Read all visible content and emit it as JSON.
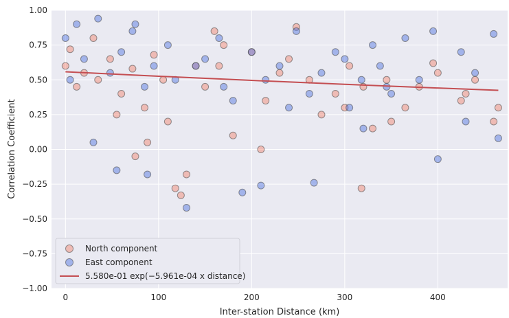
{
  "chart_data": {
    "type": "scatter",
    "xlabel": "Inter-station Distance (km)",
    "ylabel": "Correlation Coefficient",
    "xlim": [
      -15,
      475
    ],
    "ylim": [
      -1.0,
      1.0
    ],
    "x_ticks": [
      0,
      100,
      200,
      300,
      400
    ],
    "y_ticks": [
      -1.0,
      -0.75,
      -0.5,
      -0.25,
      0.0,
      0.25,
      0.5,
      0.75,
      1.0
    ],
    "x_tick_labels": [
      "0",
      "100",
      "200",
      "300",
      "400"
    ],
    "y_tick_labels": [
      "−1.00",
      "−0.75",
      "−0.50",
      "−0.25",
      "0.00",
      "0.25",
      "0.50",
      "0.75",
      "1.00"
    ],
    "grid": true,
    "legend_position": "lower-left",
    "colors": {
      "background": "#eaeaf2",
      "grid": "#ffffff",
      "north": "#f4836b",
      "east": "#4c72e0",
      "fit": "#c44e52"
    },
    "series": [
      {
        "name": "North component",
        "kind": "scatter",
        "points_note": "dense cloud, sample of representative points",
        "x": [
          0,
          5,
          12,
          20,
          35,
          48,
          60,
          72,
          85,
          95,
          110,
          118,
          124,
          130,
          150,
          165,
          180,
          200,
          215,
          230,
          248,
          262,
          275,
          290,
          305,
          318,
          330,
          345,
          365,
          380,
          395,
          425,
          440,
          465,
          30,
          55,
          88,
          140,
          170,
          210,
          240,
          300,
          320,
          350,
          400,
          430,
          460,
          75,
          105,
          160
        ],
        "y": [
          0.6,
          0.72,
          0.45,
          0.55,
          0.5,
          0.65,
          0.4,
          0.58,
          0.3,
          0.68,
          0.2,
          -0.28,
          -0.33,
          -0.18,
          0.45,
          0.6,
          0.1,
          0.7,
          0.35,
          0.55,
          0.88,
          0.5,
          0.25,
          0.4,
          0.6,
          -0.28,
          0.15,
          0.5,
          0.3,
          0.45,
          0.62,
          0.35,
          0.5,
          0.3,
          0.8,
          0.25,
          0.05,
          0.6,
          0.75,
          0.0,
          0.65,
          0.3,
          0.45,
          0.2,
          0.55,
          0.4,
          0.2,
          -0.05,
          0.5,
          0.85
        ]
      },
      {
        "name": "East component",
        "kind": "scatter",
        "x": [
          0,
          5,
          12,
          20,
          35,
          48,
          60,
          72,
          85,
          95,
          110,
          118,
          130,
          150,
          165,
          180,
          200,
          215,
          230,
          248,
          262,
          267,
          275,
          290,
          305,
          318,
          330,
          338,
          345,
          365,
          380,
          395,
          425,
          440,
          465,
          30,
          55,
          88,
          140,
          170,
          190,
          210,
          240,
          300,
          320,
          350,
          400,
          430,
          460,
          75
        ],
        "y": [
          0.8,
          0.5,
          0.9,
          0.65,
          0.94,
          0.55,
          0.7,
          0.85,
          0.45,
          0.6,
          0.75,
          0.5,
          -0.42,
          0.65,
          0.8,
          0.35,
          0.7,
          0.5,
          0.6,
          0.85,
          0.4,
          -0.24,
          0.55,
          0.7,
          0.3,
          0.5,
          0.75,
          0.6,
          0.45,
          0.8,
          0.5,
          0.85,
          0.7,
          0.55,
          0.08,
          0.05,
          -0.15,
          -0.18,
          0.6,
          0.45,
          -0.31,
          -0.26,
          0.3,
          0.65,
          0.15,
          0.4,
          -0.07,
          0.2,
          0.83,
          0.9
        ]
      },
      {
        "name": "5.580e-01 exp(−5.961e-04 x distance)",
        "kind": "line",
        "x": [
          0,
          50,
          100,
          150,
          200,
          250,
          300,
          350,
          400,
          465
        ],
        "y": [
          0.558,
          0.5418,
          0.5262,
          0.5109,
          0.4961,
          0.4818,
          0.4678,
          0.4543,
          0.4411,
          0.4248
        ]
      }
    ]
  }
}
